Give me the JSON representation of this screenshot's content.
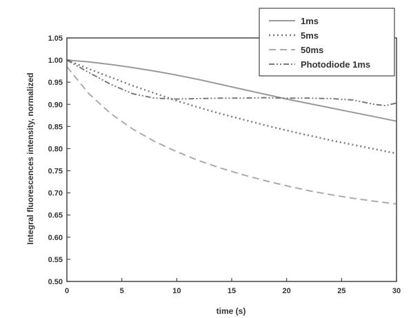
{
  "chart_data": {
    "type": "line",
    "title": "",
    "xlabel": "time (s)",
    "ylabel": "Integral fluorescences intensity, normalized",
    "xlim": [
      0,
      30
    ],
    "ylim": [
      0.5,
      1.05
    ],
    "xticks": [
      0,
      5,
      10,
      15,
      20,
      25,
      30
    ],
    "yticks": [
      0.5,
      0.55,
      0.6,
      0.65,
      0.7,
      0.75,
      0.8,
      0.85,
      0.9,
      0.95,
      1.0,
      1.05
    ],
    "grid": false,
    "legend_position": "top-right",
    "series": [
      {
        "name": "1ms",
        "style": "solid",
        "color": "#999999",
        "x": [
          0,
          2,
          4,
          6,
          8,
          10,
          12,
          14,
          16,
          18,
          20,
          22,
          24,
          26,
          28,
          30
        ],
        "y": [
          1.0,
          0.996,
          0.99,
          0.983,
          0.975,
          0.966,
          0.956,
          0.945,
          0.934,
          0.923,
          0.912,
          0.902,
          0.892,
          0.882,
          0.872,
          0.862
        ]
      },
      {
        "name": "5ms",
        "style": "dotted",
        "color": "#777777",
        "x": [
          0,
          2,
          4,
          6,
          8,
          10,
          12,
          14,
          16,
          18,
          20,
          22,
          24,
          26,
          28,
          30
        ],
        "y": [
          1.0,
          0.98,
          0.961,
          0.942,
          0.925,
          0.908,
          0.893,
          0.879,
          0.866,
          0.853,
          0.841,
          0.83,
          0.819,
          0.809,
          0.799,
          0.789
        ]
      },
      {
        "name": "50ms",
        "style": "dashed",
        "color": "#aaaaaa",
        "x": [
          0,
          2,
          4,
          6,
          8,
          10,
          12,
          14,
          16,
          18,
          20,
          22,
          24,
          26,
          28,
          30
        ],
        "y": [
          0.985,
          0.924,
          0.879,
          0.844,
          0.816,
          0.793,
          0.773,
          0.756,
          0.741,
          0.728,
          0.716,
          0.705,
          0.696,
          0.688,
          0.681,
          0.675
        ]
      },
      {
        "name": "Photodiode 1ms",
        "style": "dash-dot-dot",
        "color": "#777777",
        "x": [
          0,
          2,
          4,
          6,
          8,
          10,
          12,
          14,
          16,
          18,
          20,
          22,
          24,
          26,
          28,
          29,
          30
        ],
        "y": [
          1.0,
          0.972,
          0.945,
          0.924,
          0.914,
          0.912,
          0.913,
          0.914,
          0.914,
          0.915,
          0.914,
          0.914,
          0.913,
          0.91,
          0.9,
          0.897,
          0.903
        ]
      }
    ]
  }
}
